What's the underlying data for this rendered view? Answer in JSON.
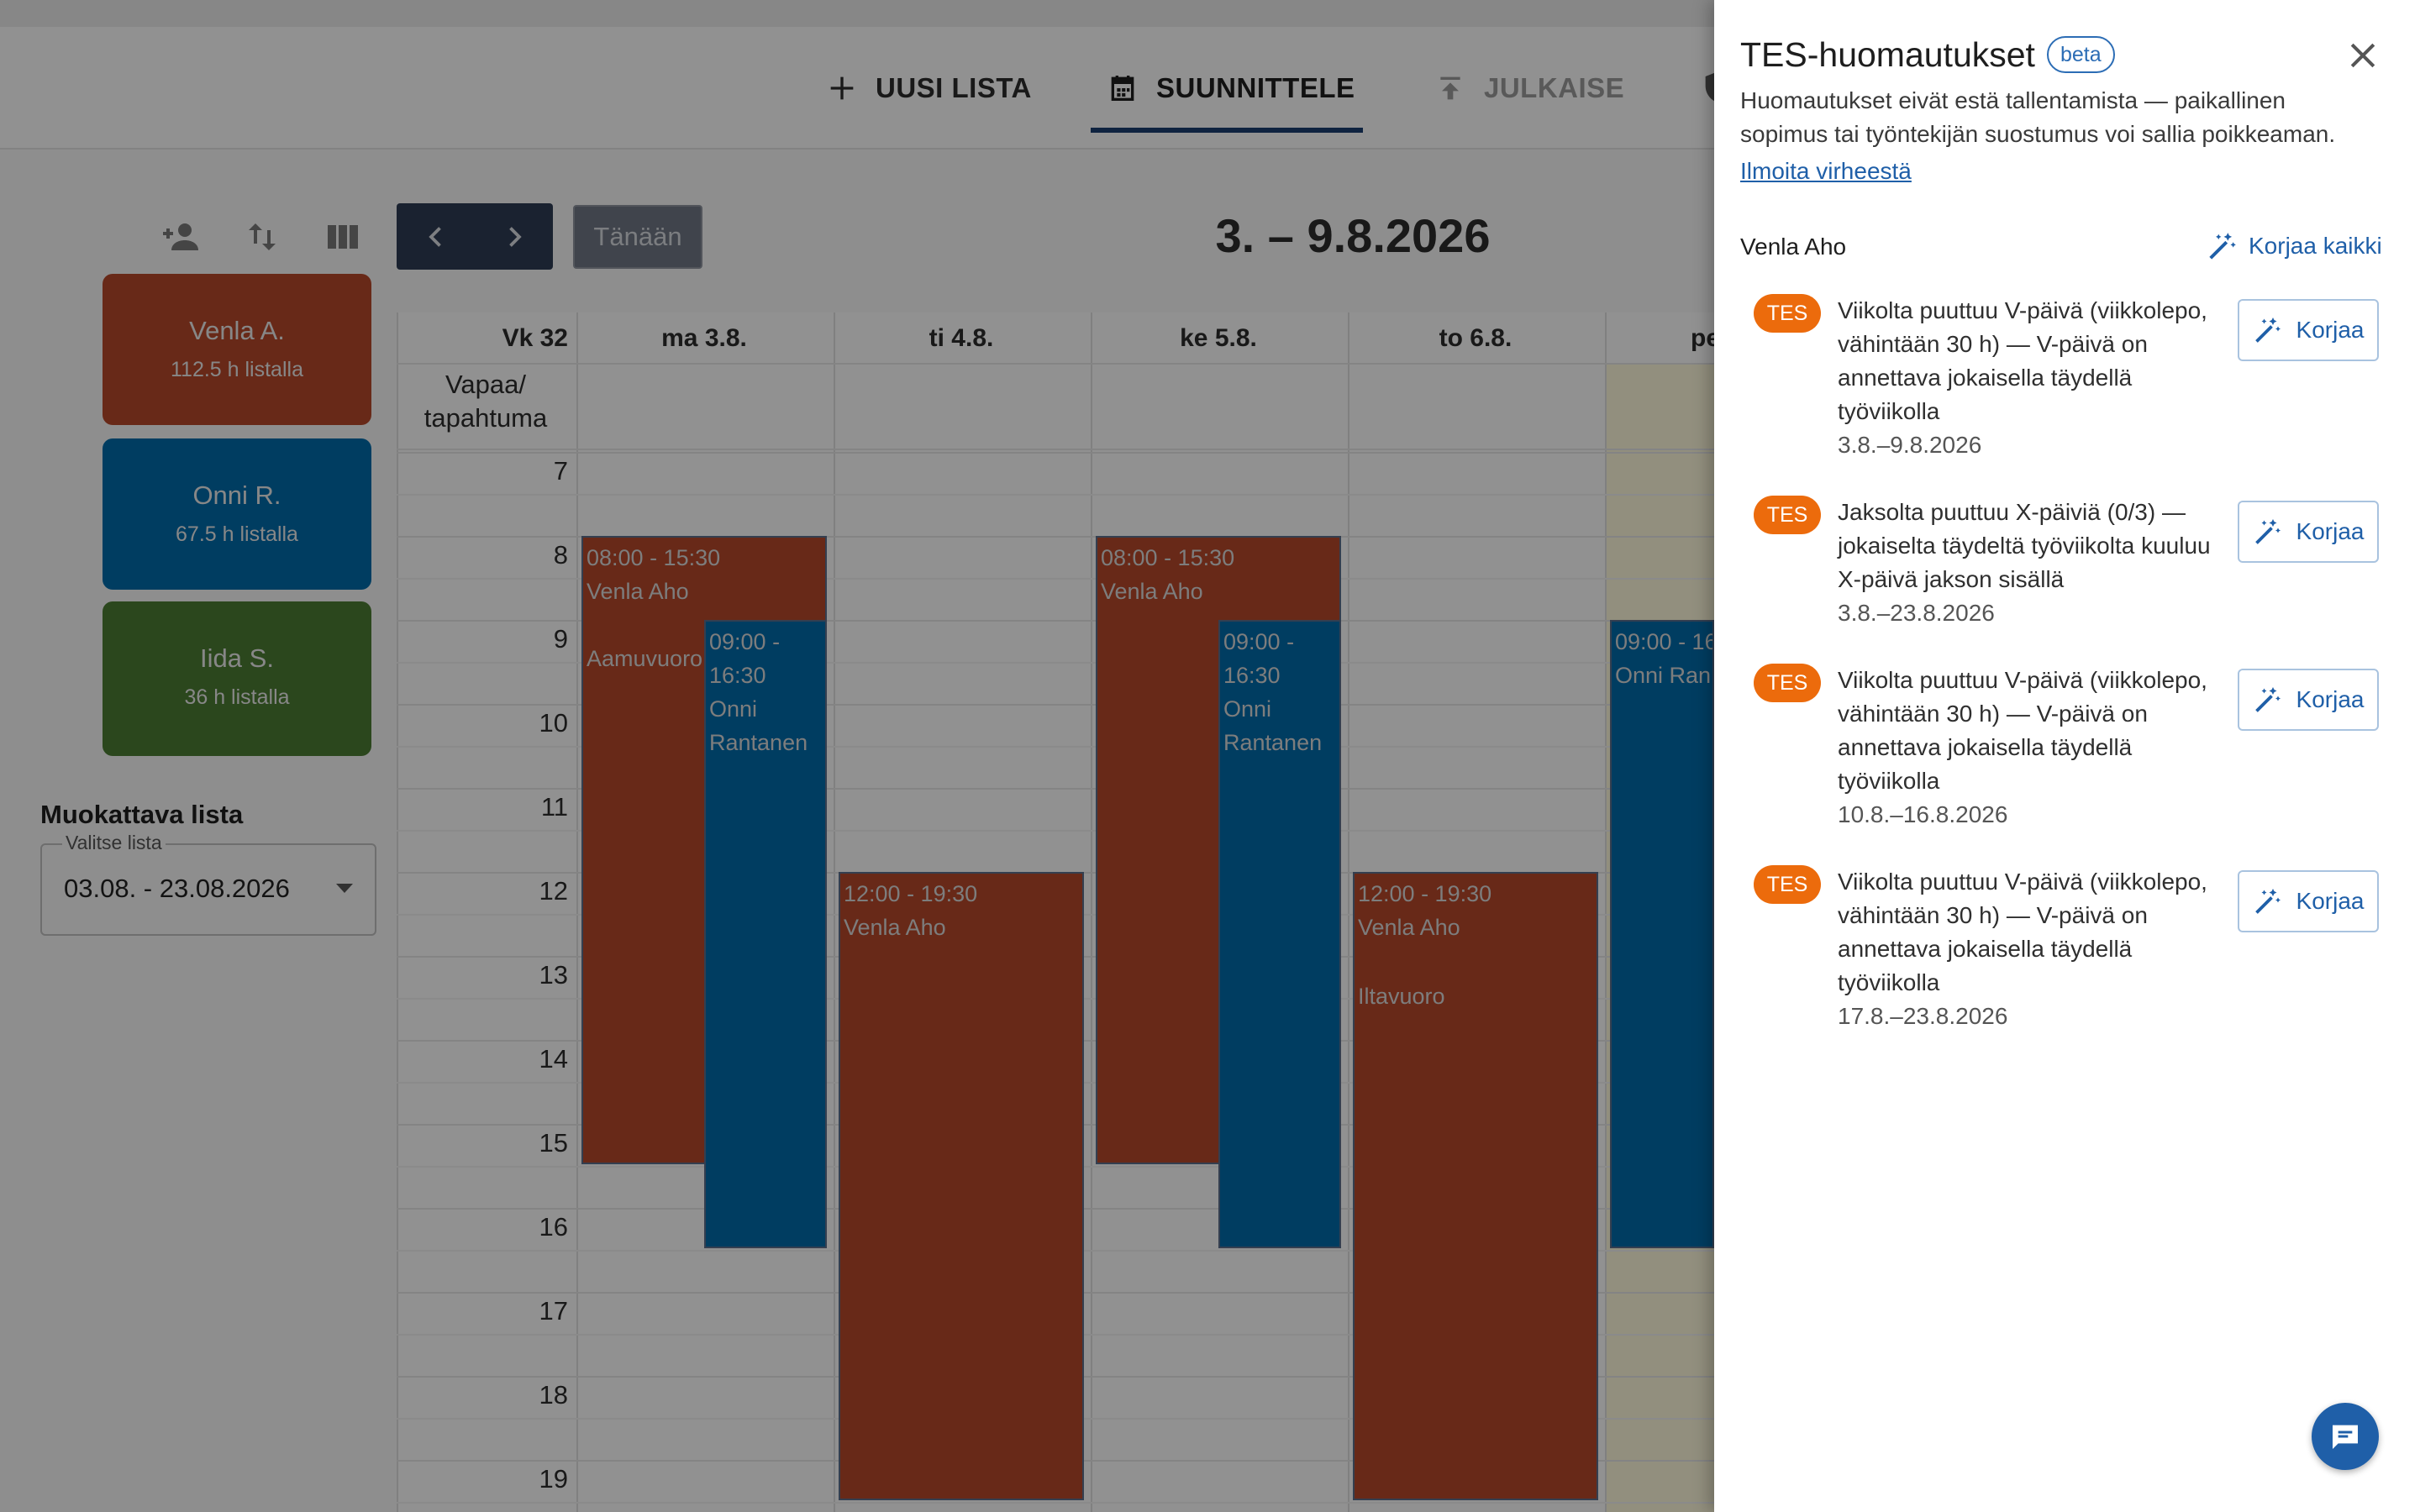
{
  "nav": {
    "new_list": "UUSI LISTA",
    "plan": "SUUNNITTELE",
    "publish": "JULKAISE"
  },
  "toolbar": {
    "today": "Tänään",
    "week_range": "3. – 9.8.2026"
  },
  "employees": [
    {
      "name": "Venla A.",
      "hours": "112.5 h listalla",
      "color": "#b4472a"
    },
    {
      "name": "Onni R.",
      "hours": "67.5 h listalla",
      "color": "#0169a8"
    },
    {
      "name": "Iida S.",
      "hours": "36 h listalla",
      "color": "#4a7a33"
    }
  ],
  "list_editor": {
    "title": "Muokattava lista",
    "select_label": "Valitse lista",
    "select_value": "03.08. - 23.08.2026"
  },
  "calendar": {
    "week_label": "Vk 32",
    "days": [
      "ma 3.8.",
      "ti 4.8.",
      "ke 5.8.",
      "to 6.8.",
      "pe"
    ],
    "allday_label_1": "Vapaa/",
    "allday_label_2": "tapahtuma",
    "hours": [
      "7",
      "8",
      "9",
      "10",
      "11",
      "12",
      "13",
      "14",
      "15",
      "16",
      "17",
      "18",
      "19"
    ],
    "shifts": [
      {
        "time": "08:00 - 15:30",
        "person": "Venla Aho",
        "note": "Aamuvuoro"
      },
      {
        "time": "09:00 - 16:30",
        "person": "Onni Rantanen"
      },
      {
        "time": "12:00 - 19:30",
        "person": "Venla Aho"
      },
      {
        "time": "08:00 - 15:30",
        "person": "Venla Aho"
      },
      {
        "time": "09:00 - 16:30",
        "person": "Onni Rantanen"
      },
      {
        "time": "12:00 - 19:30",
        "person": "Venla Aho",
        "note": "Iltavuoro"
      },
      {
        "time": "09:00 - 16",
        "person": "Onni Ran"
      }
    ]
  },
  "panel": {
    "title": "TES-huomautukset",
    "beta": "beta",
    "description": "Huomautukset eivät estä tallentamista — paikallinen sopimus tai työntekijän suostumus voi sallia poikkeaman.",
    "report_link": "Ilmoita virheestä",
    "person": "Venla Aho",
    "fix_all": "Korjaa kaikki",
    "fix_label": "Korjaa",
    "badge": "TES",
    "issues": [
      {
        "text": "Viikolta puuttuu V-päivä (viikkolepo, vähintään 30 h) — V-päivä on annettava jokaisella täydellä työviikolla",
        "date": "3.8.–9.8.2026"
      },
      {
        "text": "Jaksolta puuttuu X-päiviä (0/3) — jokaiselta täydeltä työviikolta kuuluu X-päivä jakson sisällä",
        "date": "3.8.–23.8.2026"
      },
      {
        "text": "Viikolta puuttuu V-päivä (viikkolepo, vähintään 30 h) — V-päivä on annettava jokaisella täydellä työviikolla",
        "date": "10.8.–16.8.2026"
      },
      {
        "text": "Viikolta puuttuu V-päivä (viikkolepo, vähintään 30 h) — V-päivä on annettava jokaisella täydellä työviikolla",
        "date": "17.8.–23.8.2026"
      }
    ]
  }
}
